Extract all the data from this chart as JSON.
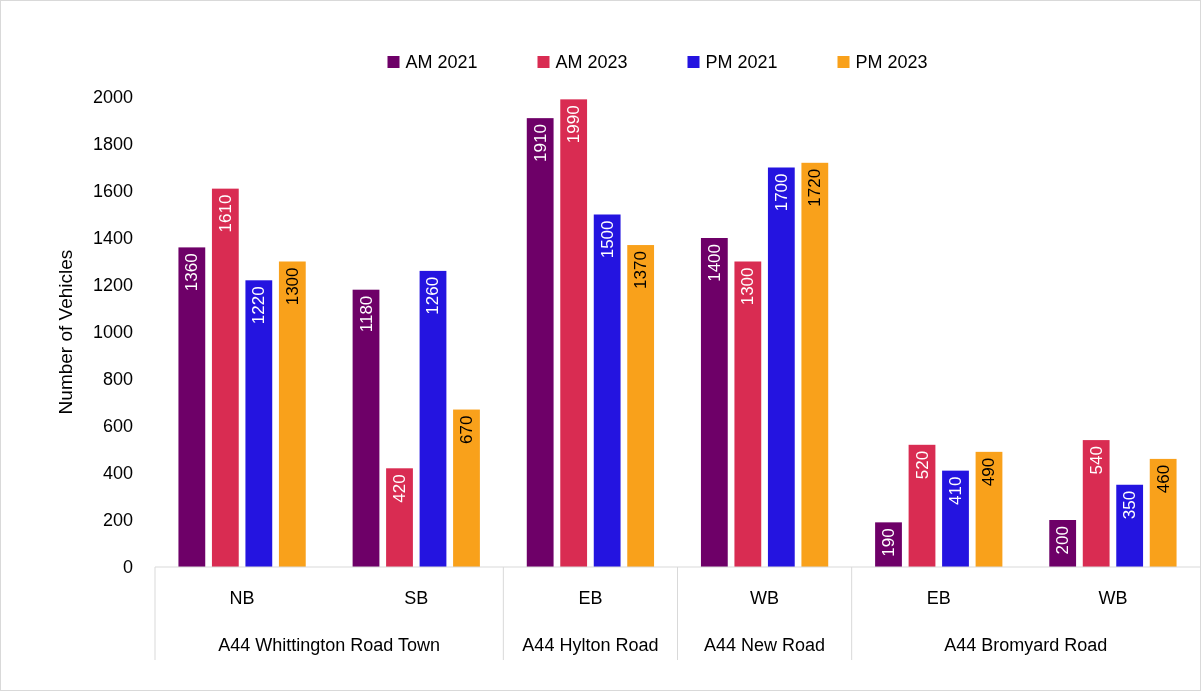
{
  "chart_data": {
    "type": "bar",
    "ylabel": "Number of Vehicles",
    "categories": [
      "NB",
      "SB",
      "EB",
      "WB",
      "EB",
      "WB"
    ],
    "series": [
      {
        "name": "AM 2021",
        "color": "#6e0068",
        "values": [
          1360,
          1180,
          1910,
          1400,
          190,
          200
        ]
      },
      {
        "name": "AM 2023",
        "color": "#d92c52",
        "values": [
          1610,
          420,
          1990,
          1300,
          520,
          540
        ]
      },
      {
        "name": "PM 2021",
        "color": "#2414e0",
        "values": [
          1220,
          1260,
          1500,
          1700,
          410,
          350
        ]
      },
      {
        "name": "PM 2023",
        "color": "#f9a11b",
        "values": [
          1300,
          670,
          1370,
          1720,
          490,
          460
        ]
      }
    ],
    "ylim": [
      0,
      2000
    ],
    "yticks": [
      0,
      200,
      400,
      600,
      800,
      1000,
      1200,
      1400,
      1600,
      1800,
      2000
    ],
    "data_labels": true,
    "legend": "top",
    "grid": false,
    "annotations": [
      "A44 Whittington Road Town",
      "A44 Hylton Road",
      "A44 New Road",
      "A44 Bromyard Road"
    ]
  }
}
